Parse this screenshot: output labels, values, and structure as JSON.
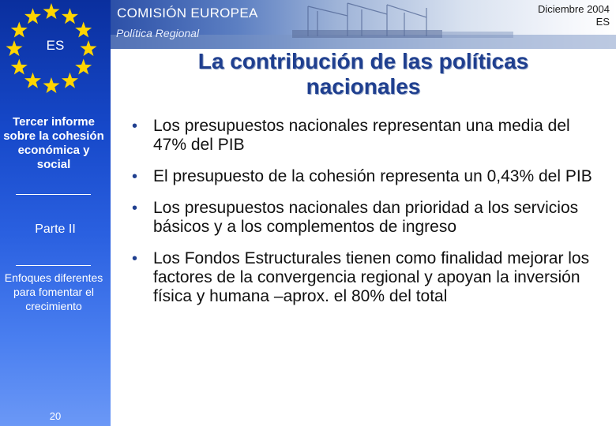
{
  "sidebar": {
    "language_code": "ES",
    "report_title": "Tercer informe sobre la cohesión económica y social",
    "part_label": "Parte II",
    "approach_text": "Enfoques diferentes para fomentar el crecimiento",
    "page_number": "20"
  },
  "header": {
    "commission_name": "COMISIÓN EUROPEA",
    "dg_name": "Política Regional",
    "date_line1": "Diciembre 2004",
    "date_line2": "ES"
  },
  "slide": {
    "title_line1": "La contribución de las políticas",
    "title_line2": "nacionales",
    "bullets": [
      "Los presupuestos nacionales representan una media del 47% del PIB",
      "El presupuesto de la cohesión representa un 0,43% del PIB",
      "Los presupuestos nacionales dan prioridad a los servicios básicos y a los complementos de ingreso",
      "Los Fondos Estructurales tienen como finalidad mejorar los factores de la convergencia regional y apoyan la inversión física y humana –aprox. el 80% del total"
    ]
  },
  "colors": {
    "sidebar_blue": "#1648c9",
    "title_blue": "#1f3f8f",
    "star_yellow": "#ffd500"
  }
}
